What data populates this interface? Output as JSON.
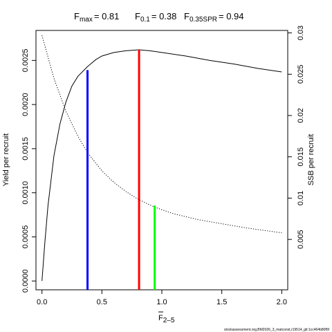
{
  "chart_data": {
    "type": "line",
    "title": {
      "fmax_label": "F",
      "fmax_sub": "max",
      "fmax_value": "= 0.81",
      "f01_label": "F",
      "f01_sub": "0.1",
      "f01_value": "= 0.38",
      "fspr_label": "F",
      "fspr_sub": "0.35SPR",
      "fspr_value": "= 0.94"
    },
    "xlabel": "F",
    "xlabel_sub": "2–5",
    "ylabel_left": "Yield per recruit",
    "ylabel_right": "SSB per recruit",
    "xlim": [
      -0.05,
      2.05
    ],
    "ylim_left": [
      -0.0001,
      0.00284
    ],
    "ylim_right": [
      -0.0011,
      0.0303
    ],
    "x_ticks": [
      0,
      0.5,
      1,
      1.5,
      2
    ],
    "x_tick_labels": [
      "0.0",
      "0.5",
      "1.0",
      "1.5",
      "2.0"
    ],
    "y_left_ticks": [
      0,
      0.0005,
      0.001,
      0.0015,
      0.002,
      0.0025
    ],
    "y_left_tick_labels": [
      "0.0000",
      "0.0005",
      "0.0010",
      "0.0015",
      "0.0020",
      "0.0025"
    ],
    "y_right_ticks": [
      0.005,
      0.01,
      0.015,
      0.02,
      0.025,
      0.03
    ],
    "y_right_tick_labels": [
      "0.005",
      "0.01",
      "0.015",
      "0.02",
      "0.025",
      "0.03"
    ],
    "series": [
      {
        "style": "solid",
        "axis": "left",
        "color": "#000000",
        "x": [
          0,
          0.025,
          0.05,
          0.1,
          0.15,
          0.2,
          0.25,
          0.3,
          0.38,
          0.45,
          0.5,
          0.6,
          0.7,
          0.81,
          0.9,
          1.0,
          1.2,
          1.4,
          1.6,
          1.8,
          2.0
        ],
        "y": [
          0,
          0.00045,
          0.00085,
          0.00142,
          0.00178,
          0.00203,
          0.00221,
          0.00232,
          0.00243,
          0.00251,
          0.00255,
          0.00259,
          0.00261,
          0.00262,
          0.00261,
          0.00259,
          0.00255,
          0.0025,
          0.00246,
          0.00241,
          0.00237
        ]
      },
      {
        "style": "dotted",
        "axis": "right",
        "color": "#000000",
        "x": [
          0,
          0.1,
          0.2,
          0.3,
          0.38,
          0.5,
          0.6,
          0.7,
          0.81,
          0.94,
          1.1,
          1.3,
          1.5,
          1.7,
          1.9,
          2.0
        ],
        "y": [
          0.0297,
          0.0245,
          0.0205,
          0.0175,
          0.0155,
          0.0133,
          0.0119,
          0.0108,
          0.0098,
          0.0089,
          0.0081,
          0.0074,
          0.0069,
          0.0064,
          0.006,
          0.0058
        ]
      }
    ],
    "reference_lines": [
      {
        "name": "F0.1",
        "x": 0.38,
        "y": 0.00239,
        "color": "#0000ff",
        "axis": "left"
      },
      {
        "name": "Fmax",
        "x": 0.81,
        "y": 0.00262,
        "color": "#ff0000",
        "axis": "left"
      },
      {
        "name": "F0.35SPR",
        "x": 0.94,
        "y": 0.0091,
        "color": "#00ff00",
        "axis": "right"
      }
    ],
    "footer": "stockassessment.org,BM2026_3_matconst,r19514_git:1cc464b80f6f"
  }
}
